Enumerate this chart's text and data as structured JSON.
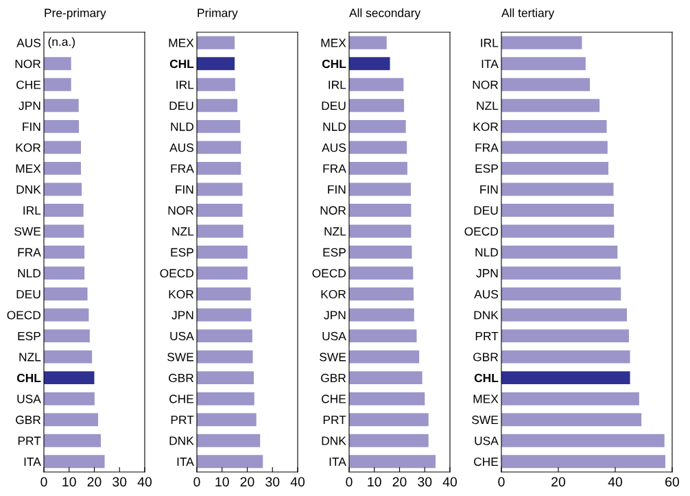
{
  "chart_data": [
    {
      "type": "bar",
      "orientation": "horizontal",
      "title": "Pre-primary",
      "xlim": [
        0,
        40
      ],
      "xticks": [
        0,
        10,
        20,
        30,
        40
      ],
      "grid": false,
      "legend": false,
      "categories": [
        "AUS",
        "NOR",
        "CHE",
        "JPN",
        "FIN",
        "KOR",
        "MEX",
        "DNK",
        "IRL",
        "SWE",
        "FRA",
        "NLD",
        "DEU",
        "OECD",
        "ESP",
        "NZL",
        "CHL",
        "USA",
        "GBR",
        "PRT",
        "ITA"
      ],
      "values": [
        null,
        10.8,
        10.8,
        13.8,
        13.9,
        14.7,
        14.7,
        15.0,
        15.7,
        15.9,
        16.1,
        16.1,
        17.3,
        17.8,
        18.2,
        19.1,
        20.0,
        20.1,
        21.5,
        22.6,
        24.1
      ],
      "colors": [
        "#9b95c9",
        "#9b95c9",
        "#9b95c9",
        "#9b95c9",
        "#9b95c9",
        "#9b95c9",
        "#9b95c9",
        "#9b95c9",
        "#9b95c9",
        "#9b95c9",
        "#9b95c9",
        "#9b95c9",
        "#9b95c9",
        "#9b95c9",
        "#9b95c9",
        "#9b95c9",
        "#2e3192",
        "#9b95c9",
        "#9b95c9",
        "#9b95c9",
        "#9b95c9"
      ],
      "annotations": [
        "(n.a.)"
      ]
    },
    {
      "type": "bar",
      "orientation": "horizontal",
      "title": "Primary",
      "xlim": [
        0,
        40
      ],
      "xticks": [
        0,
        10,
        20,
        30,
        40
      ],
      "grid": false,
      "legend": false,
      "categories": [
        "MEX",
        "CHL",
        "IRL",
        "DEU",
        "NLD",
        "AUS",
        "FRA",
        "FIN",
        "NOR",
        "NZL",
        "ESP",
        "OECD",
        "KOR",
        "JPN",
        "USA",
        "SWE",
        "GBR",
        "CHE",
        "PRT",
        "DNK",
        "ITA"
      ],
      "values": [
        15.0,
        15.0,
        15.2,
        16.1,
        17.2,
        17.5,
        17.5,
        18.1,
        18.1,
        18.4,
        20.1,
        20.1,
        21.4,
        21.6,
        22.0,
        22.2,
        22.6,
        22.8,
        23.6,
        25.1,
        26.2
      ],
      "colors": [
        "#9b95c9",
        "#2e3192",
        "#9b95c9",
        "#9b95c9",
        "#9b95c9",
        "#9b95c9",
        "#9b95c9",
        "#9b95c9",
        "#9b95c9",
        "#9b95c9",
        "#9b95c9",
        "#9b95c9",
        "#9b95c9",
        "#9b95c9",
        "#9b95c9",
        "#9b95c9",
        "#9b95c9",
        "#9b95c9",
        "#9b95c9",
        "#9b95c9",
        "#9b95c9"
      ]
    },
    {
      "type": "bar",
      "orientation": "horizontal",
      "title": "All secondary",
      "xlim": [
        0,
        40
      ],
      "xticks": [
        0,
        10,
        20,
        30,
        40
      ],
      "grid": false,
      "legend": false,
      "categories": [
        "MEX",
        "CHL",
        "IRL",
        "DEU",
        "NLD",
        "AUS",
        "FRA",
        "FIN",
        "NOR",
        "NZL",
        "ESP",
        "OECD",
        "KOR",
        "JPN",
        "USA",
        "SWE",
        "GBR",
        "CHE",
        "PRT",
        "DNK",
        "ITA"
      ],
      "values": [
        14.9,
        16.2,
        21.6,
        21.8,
        22.5,
        22.9,
        23.1,
        24.5,
        24.6,
        24.6,
        24.9,
        25.4,
        25.6,
        25.8,
        26.8,
        27.8,
        29.0,
        30.0,
        31.5,
        31.5,
        34.3
      ],
      "colors": [
        "#9b95c9",
        "#2e3192",
        "#9b95c9",
        "#9b95c9",
        "#9b95c9",
        "#9b95c9",
        "#9b95c9",
        "#9b95c9",
        "#9b95c9",
        "#9b95c9",
        "#9b95c9",
        "#9b95c9",
        "#9b95c9",
        "#9b95c9",
        "#9b95c9",
        "#9b95c9",
        "#9b95c9",
        "#9b95c9",
        "#9b95c9",
        "#9b95c9",
        "#9b95c9"
      ]
    },
    {
      "type": "bar",
      "orientation": "horizontal",
      "title": "All tertiary",
      "xlim": [
        0,
        60
      ],
      "xticks": [
        0,
        20,
        40,
        60
      ],
      "grid": false,
      "legend": false,
      "categories": [
        "IRL",
        "ITA",
        "NOR",
        "NZL",
        "KOR",
        "FRA",
        "ESP",
        "FIN",
        "DEU",
        "OECD",
        "NLD",
        "JPN",
        "AUS",
        "DNK",
        "PRT",
        "GBR",
        "CHL",
        "MEX",
        "SWE",
        "USA",
        "CHE"
      ],
      "values": [
        28.3,
        29.6,
        31.1,
        34.5,
        37.0,
        37.3,
        37.6,
        39.4,
        39.5,
        39.6,
        40.8,
        41.9,
        42.0,
        44.1,
        44.8,
        45.2,
        45.2,
        48.4,
        49.2,
        57.3,
        57.6
      ],
      "colors": [
        "#9b95c9",
        "#9b95c9",
        "#9b95c9",
        "#9b95c9",
        "#9b95c9",
        "#9b95c9",
        "#9b95c9",
        "#9b95c9",
        "#9b95c9",
        "#9b95c9",
        "#9b95c9",
        "#9b95c9",
        "#9b95c9",
        "#9b95c9",
        "#9b95c9",
        "#9b95c9",
        "#2e3192",
        "#9b95c9",
        "#9b95c9",
        "#9b95c9",
        "#9b95c9"
      ]
    }
  ]
}
